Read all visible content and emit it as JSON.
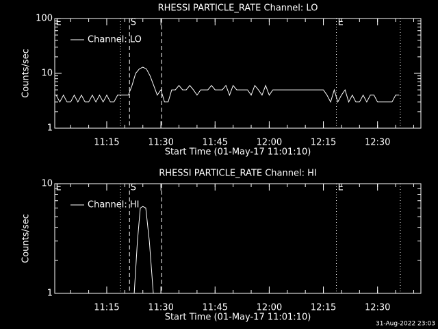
{
  "chart_data": [
    {
      "type": "line",
      "title": "RHESSI PARTICLE_RATE Channel: LO",
      "xlabel": "Start Time (01-May-17 11:01:10)",
      "ylabel": "Counts/sec",
      "log_y": true,
      "xlim": [
        0.6,
        102
      ],
      "ylim": [
        1,
        100
      ],
      "yticks": [
        1,
        10,
        100
      ],
      "xticks": [
        {
          "value": 15,
          "label": "11:15"
        },
        {
          "value": 30,
          "label": "11:30"
        },
        {
          "value": 45,
          "label": "11:45"
        },
        {
          "value": 60,
          "label": "12:00"
        },
        {
          "value": 75,
          "label": "12:15"
        },
        {
          "value": 90,
          "label": "12:30"
        }
      ],
      "legend": "upper left",
      "event_lines": [
        {
          "x": 18.8,
          "style": "dotted"
        },
        {
          "x": 21.3,
          "style": "dashed"
        },
        {
          "x": 30.2,
          "style": "dashed"
        },
        {
          "x": 78.6,
          "style": "dotted"
        },
        {
          "x": 96.3,
          "style": "dotted"
        }
      ],
      "event_labels": [
        {
          "text": "E",
          "x": 0.7
        },
        {
          "text": "S",
          "x": 21.4
        },
        {
          "text": "E",
          "x": 78.8
        }
      ],
      "series": [
        {
          "name": "Channel: LO",
          "color": "#ffffff",
          "x": [
            1,
            2,
            3,
            4,
            5,
            6,
            7,
            8,
            9,
            10,
            11,
            12,
            13,
            14,
            15,
            16,
            17,
            18,
            19,
            20,
            21,
            22,
            23,
            24,
            25,
            26,
            27,
            28,
            29,
            30,
            31,
            32,
            33,
            34,
            35,
            36,
            37,
            38,
            39,
            40,
            41,
            42,
            43,
            44,
            45,
            46,
            47,
            48,
            49,
            50,
            51,
            52,
            53,
            54,
            55,
            56,
            57,
            58,
            59,
            60,
            61,
            62,
            63,
            64,
            65,
            66,
            67,
            68,
            69,
            70,
            71,
            72,
            73,
            74,
            75,
            76,
            77,
            78,
            79,
            80,
            81,
            82,
            83,
            84,
            85,
            86,
            87,
            88,
            89,
            90,
            91,
            92,
            93,
            94,
            95,
            96
          ],
          "values": [
            4,
            3,
            4,
            3,
            3,
            4,
            3,
            4,
            3,
            3,
            4,
            3,
            4,
            3,
            4,
            3,
            3,
            4,
            4,
            4,
            4,
            6,
            10,
            12,
            13,
            12,
            9,
            6,
            4,
            5,
            3,
            3,
            5,
            5,
            6,
            5,
            5,
            6,
            5,
            4,
            5,
            5,
            5,
            6,
            5,
            5,
            5,
            6,
            4,
            6,
            5,
            5,
            5,
            5,
            4,
            6,
            5,
            4,
            6,
            4,
            5,
            5,
            5,
            5,
            5,
            5,
            5,
            5,
            5,
            5,
            5,
            5,
            5,
            5,
            5,
            4,
            3,
            5,
            3,
            4,
            5,
            3,
            4,
            3,
            3,
            4,
            3,
            4,
            4,
            3,
            3,
            3,
            3,
            3,
            4,
            4
          ]
        }
      ]
    },
    {
      "type": "line",
      "title": "RHESSI PARTICLE_RATE Channel: HI",
      "xlabel": "Start Time (01-May-17 11:01:10)",
      "ylabel": "Counts/sec",
      "log_y": true,
      "xlim": [
        0.6,
        102
      ],
      "ylim": [
        1,
        10
      ],
      "yticks": [
        1,
        10
      ],
      "xticks": [
        {
          "value": 15,
          "label": "11:15"
        },
        {
          "value": 30,
          "label": "11:30"
        },
        {
          "value": 45,
          "label": "11:45"
        },
        {
          "value": 60,
          "label": "12:00"
        },
        {
          "value": 75,
          "label": "12:15"
        },
        {
          "value": 90,
          "label": "12:30"
        }
      ],
      "legend": "upper left",
      "event_lines": [
        {
          "x": 18.8,
          "style": "dotted"
        },
        {
          "x": 21.3,
          "style": "dashed"
        },
        {
          "x": 30.2,
          "style": "dashed"
        },
        {
          "x": 78.6,
          "style": "dotted"
        },
        {
          "x": 96.3,
          "style": "dotted"
        }
      ],
      "event_labels": [
        {
          "text": "E",
          "x": 0.7
        },
        {
          "text": "S",
          "x": 21.4
        },
        {
          "text": "E",
          "x": 78.8
        }
      ],
      "series": [
        {
          "name": "Channel: HI",
          "color": "#ffffff",
          "x": [
            22.6,
            23.5,
            24.3,
            25,
            25.8,
            26.8,
            27.9
          ],
          "values": [
            1,
            3,
            6,
            6.2,
            6,
            3,
            1
          ]
        }
      ]
    }
  ],
  "footer": "31-Aug-2022 23:03"
}
